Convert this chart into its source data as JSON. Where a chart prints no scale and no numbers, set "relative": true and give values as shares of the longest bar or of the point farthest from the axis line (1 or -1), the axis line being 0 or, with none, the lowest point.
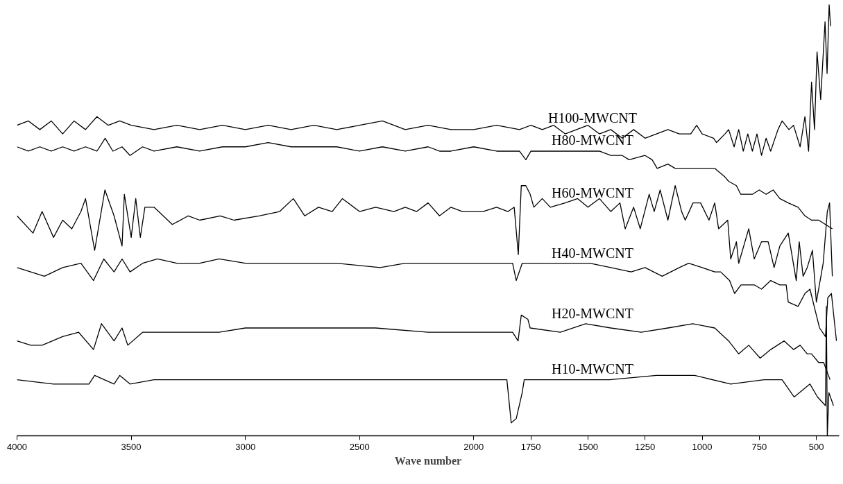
{
  "chart_data": {
    "type": "line",
    "relative": true,
    "xlabel": "Wave number",
    "xlim": [
      4000,
      400
    ],
    "xticks": [
      4000,
      3500,
      3000,
      2500,
      2000,
      1750,
      1500,
      1250,
      1000,
      750,
      500
    ],
    "grid": false,
    "series": [
      {
        "name": "H100-MWCNT",
        "color": "#000000",
        "x": [
          4000,
          3950,
          3900,
          3850,
          3800,
          3750,
          3700,
          3650,
          3600,
          3550,
          3500,
          3400,
          3300,
          3200,
          3100,
          3000,
          2900,
          2800,
          2700,
          2600,
          2500,
          2400,
          2300,
          2200,
          2100,
          2000,
          1900,
          1800,
          1750,
          1700,
          1650,
          1600,
          1550,
          1500,
          1450,
          1400,
          1350,
          1300,
          1250,
          1200,
          1150,
          1100,
          1050,
          1024,
          1000,
          950,
          937,
          900,
          884,
          860,
          840,
          820,
          800,
          780,
          760,
          740,
          720,
          700,
          668,
          650,
          620,
          600,
          571,
          550,
          534,
          521,
          508,
          497,
          481,
          462,
          453,
          444,
          438
        ],
        "values": [
          0.72,
          0.73,
          0.71,
          0.73,
          0.7,
          0.73,
          0.71,
          0.74,
          0.72,
          0.73,
          0.72,
          0.71,
          0.72,
          0.71,
          0.72,
          0.71,
          0.72,
          0.71,
          0.72,
          0.71,
          0.72,
          0.73,
          0.71,
          0.72,
          0.71,
          0.71,
          0.72,
          0.71,
          0.72,
          0.71,
          0.72,
          0.7,
          0.71,
          0.72,
          0.7,
          0.71,
          0.69,
          0.71,
          0.69,
          0.7,
          0.71,
          0.7,
          0.7,
          0.72,
          0.7,
          0.69,
          0.68,
          0.7,
          0.71,
          0.67,
          0.71,
          0.66,
          0.7,
          0.66,
          0.7,
          0.65,
          0.69,
          0.66,
          0.71,
          0.73,
          0.71,
          0.72,
          0.67,
          0.74,
          0.66,
          0.82,
          0.71,
          0.89,
          0.78,
          0.96,
          0.84,
          1.0,
          0.95
        ]
      },
      {
        "name": "H80-MWCNT",
        "color": "#000000",
        "x": [
          4000,
          3950,
          3900,
          3850,
          3800,
          3750,
          3700,
          3650,
          3614,
          3580,
          3540,
          3505,
          3450,
          3400,
          3300,
          3200,
          3100,
          3000,
          2900,
          2800,
          2700,
          2600,
          2500,
          2400,
          2300,
          2200,
          2150,
          2100,
          2000,
          1900,
          1800,
          1772,
          1750,
          1700,
          1650,
          1589,
          1500,
          1450,
          1400,
          1350,
          1320,
          1250,
          1219,
          1197,
          1150,
          1118,
          1050,
          1000,
          945,
          900,
          884,
          850,
          831,
          780,
          750,
          720,
          689,
          660,
          623,
          580,
          550,
          521,
          490,
          460,
          430
        ],
        "values": [
          0.67,
          0.66,
          0.67,
          0.66,
          0.67,
          0.66,
          0.67,
          0.66,
          0.69,
          0.66,
          0.67,
          0.65,
          0.67,
          0.66,
          0.67,
          0.66,
          0.67,
          0.67,
          0.68,
          0.67,
          0.67,
          0.67,
          0.66,
          0.67,
          0.66,
          0.67,
          0.66,
          0.66,
          0.67,
          0.66,
          0.66,
          0.64,
          0.66,
          0.66,
          0.66,
          0.66,
          0.66,
          0.66,
          0.65,
          0.65,
          0.64,
          0.65,
          0.64,
          0.62,
          0.63,
          0.62,
          0.62,
          0.62,
          0.62,
          0.6,
          0.59,
          0.58,
          0.56,
          0.56,
          0.57,
          0.56,
          0.57,
          0.55,
          0.54,
          0.53,
          0.51,
          0.5,
          0.5,
          0.49,
          0.48
        ]
      },
      {
        "name": "H60-MWCNT",
        "color": "#000000",
        "x": [
          4000,
          3930,
          3890,
          3840,
          3800,
          3760,
          3720,
          3700,
          3660,
          3615,
          3575,
          3540,
          3530,
          3500,
          3480,
          3460,
          3440,
          3400,
          3320,
          3250,
          3200,
          3110,
          3050,
          2940,
          2850,
          2790,
          2740,
          2680,
          2620,
          2575,
          2500,
          2430,
          2350,
          2300,
          2250,
          2200,
          2150,
          2100,
          2050,
          2000,
          1960,
          1900,
          1850,
          1823,
          1805,
          1792,
          1772,
          1753,
          1737,
          1700,
          1665,
          1600,
          1545,
          1500,
          1450,
          1400,
          1360,
          1337,
          1300,
          1271,
          1232,
          1210,
          1184,
          1150,
          1118,
          1090,
          1074,
          1040,
          1007,
          970,
          945,
          928,
          888,
          875,
          850,
          840,
          796,
          772,
          740,
          711,
          685,
          660,
          623,
          588,
          575,
          558,
          540,
          517,
          500,
          470,
          452,
          442,
          430
        ],
        "values": [
          0.51,
          0.47,
          0.52,
          0.46,
          0.5,
          0.48,
          0.52,
          0.55,
          0.43,
          0.57,
          0.51,
          0.44,
          0.56,
          0.46,
          0.55,
          0.46,
          0.53,
          0.53,
          0.49,
          0.51,
          0.5,
          0.51,
          0.5,
          0.51,
          0.52,
          0.55,
          0.51,
          0.53,
          0.52,
          0.55,
          0.52,
          0.53,
          0.52,
          0.53,
          0.52,
          0.54,
          0.51,
          0.53,
          0.52,
          0.52,
          0.52,
          0.53,
          0.52,
          0.53,
          0.42,
          0.58,
          0.58,
          0.56,
          0.53,
          0.55,
          0.53,
          0.54,
          0.55,
          0.53,
          0.55,
          0.52,
          0.54,
          0.48,
          0.53,
          0.48,
          0.56,
          0.52,
          0.57,
          0.5,
          0.58,
          0.52,
          0.5,
          0.54,
          0.54,
          0.5,
          0.54,
          0.48,
          0.5,
          0.41,
          0.45,
          0.4,
          0.48,
          0.41,
          0.45,
          0.45,
          0.39,
          0.44,
          0.47,
          0.36,
          0.45,
          0.37,
          0.39,
          0.43,
          0.31,
          0.4,
          0.52,
          0.54,
          0.37
        ]
      },
      {
        "name": "H40-MWCNT",
        "color": "#000000",
        "x": [
          4000,
          3940,
          3880,
          3800,
          3720,
          3665,
          3620,
          3575,
          3540,
          3505,
          3450,
          3385,
          3300,
          3200,
          3115,
          3000,
          2900,
          2770,
          2600,
          2410,
          2300,
          2260,
          2100,
          2000,
          1900,
          1830,
          1814,
          1788,
          1737,
          1650,
          1550,
          1492,
          1400,
          1311,
          1250,
          1175,
          1100,
          1059,
          1000,
          945,
          919,
          880,
          858,
          830,
          796,
          772,
          740,
          700,
          660,
          632,
          623,
          580,
          550,
          528,
          500,
          486,
          460,
          450,
          434,
          412
        ],
        "values": [
          0.39,
          0.38,
          0.37,
          0.39,
          0.4,
          0.36,
          0.41,
          0.38,
          0.41,
          0.38,
          0.4,
          0.41,
          0.4,
          0.4,
          0.41,
          0.4,
          0.4,
          0.4,
          0.4,
          0.39,
          0.4,
          0.4,
          0.4,
          0.4,
          0.4,
          0.4,
          0.36,
          0.4,
          0.4,
          0.4,
          0.4,
          0.4,
          0.39,
          0.38,
          0.39,
          0.37,
          0.39,
          0.4,
          0.39,
          0.38,
          0.38,
          0.36,
          0.33,
          0.35,
          0.35,
          0.35,
          0.34,
          0.36,
          0.35,
          0.35,
          0.31,
          0.3,
          0.33,
          0.34,
          0.28,
          0.25,
          0.23,
          0.32,
          0.33,
          0.22
        ]
      },
      {
        "name": "H20-MWCNT",
        "color": "#000000",
        "x": [
          4000,
          3940,
          3890,
          3800,
          3730,
          3665,
          3630,
          3575,
          3540,
          3515,
          3450,
          3385,
          3300,
          3115,
          3000,
          2790,
          2600,
          2430,
          2200,
          2000,
          1830,
          1806,
          1792,
          1763,
          1753,
          1621,
          1510,
          1400,
          1267,
          1150,
          1041,
          945,
          884,
          840,
          796,
          746,
          700,
          641,
          600,
          571,
          540,
          521,
          490,
          468,
          440
        ],
        "values": [
          0.22,
          0.21,
          0.21,
          0.23,
          0.24,
          0.2,
          0.26,
          0.22,
          0.25,
          0.21,
          0.24,
          0.24,
          0.24,
          0.24,
          0.25,
          0.25,
          0.25,
          0.25,
          0.24,
          0.24,
          0.24,
          0.22,
          0.28,
          0.27,
          0.25,
          0.24,
          0.26,
          0.25,
          0.24,
          0.25,
          0.26,
          0.25,
          0.22,
          0.19,
          0.21,
          0.18,
          0.2,
          0.22,
          0.2,
          0.21,
          0.19,
          0.19,
          0.17,
          0.17,
          0.13
        ]
      },
      {
        "name": "H10-MWCNT",
        "color": "#000000",
        "x": [
          4000,
          3840,
          3685,
          3660,
          3575,
          3550,
          3505,
          3400,
          3000,
          2500,
          2000,
          1873,
          1855,
          1836,
          1814,
          1788,
          1779,
          1753,
          1600,
          1405,
          1200,
          1033,
          875,
          729,
          650,
          597,
          528,
          495,
          460,
          456,
          452,
          445,
          425
        ],
        "values": [
          0.13,
          0.12,
          0.12,
          0.14,
          0.12,
          0.14,
          0.12,
          0.13,
          0.13,
          0.13,
          0.13,
          0.13,
          0.13,
          0.03,
          0.04,
          0.1,
          0.13,
          0.13,
          0.13,
          0.13,
          0.14,
          0.14,
          0.12,
          0.13,
          0.13,
          0.09,
          0.12,
          0.09,
          0.07,
          0.3,
          0.0,
          0.1,
          0.07
        ]
      }
    ]
  }
}
